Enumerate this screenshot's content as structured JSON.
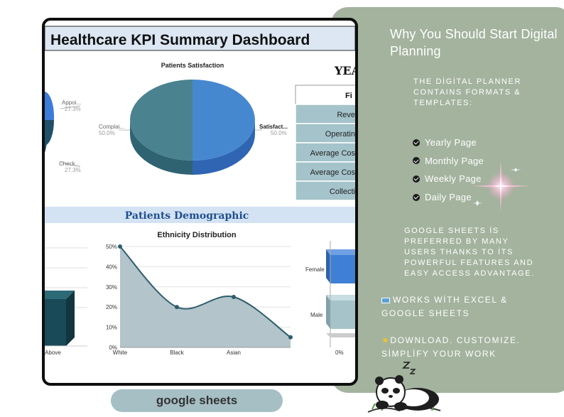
{
  "dashboard": {
    "title": "Healthcare KPI Summary Dashboard",
    "satisfaction_title": "Patients Satisfaction",
    "left_pie_labels": [
      {
        "name": "Appoi...",
        "pct": "27.3%"
      },
      {
        "name": "Check...",
        "pct": "27.3%"
      }
    ],
    "center_pie_labels": [
      {
        "name": "Complai...",
        "pct": "50.0%"
      },
      {
        "name": "Satisfact...",
        "pct": "50.0%"
      }
    ],
    "year_label": "YEA",
    "kpi_header": "Fi",
    "kpi_rows": [
      "Reve",
      "Operatin",
      "Average Cos",
      "Average Cos",
      "Collecti"
    ],
    "demographic_heading": "Patients Demographic",
    "left_axis_label": "Above",
    "colors": {
      "pie_teal": "#4a8290",
      "pie_blue": "#4688d0",
      "heading_blue": "#1f4f8f",
      "band": "#d4e3f4",
      "kpi_cell": "#a4c3ca"
    }
  },
  "chart_data": [
    {
      "type": "area",
      "title": "Ethnicity Distribution",
      "categories": [
        "White",
        "Black",
        "Asian",
        ""
      ],
      "values": [
        50,
        20,
        25,
        5
      ],
      "yticks": [
        "50%",
        "40%",
        "30%",
        "20%",
        "10%",
        "0%"
      ],
      "ylim": [
        0,
        50
      ]
    },
    {
      "type": "bar",
      "categories": [
        "Female",
        "Male"
      ],
      "xtick": "0%"
    }
  ],
  "panel": {
    "title": "Why You Should Start Digital Planning",
    "intro": "THE DİGİTAL PLANNER CONTAINS FORMATS & TEMPLATES:",
    "items": [
      "Yearly Page",
      "Monthly Page",
      "Weekly Page",
      "Daily Page"
    ],
    "google_note": "GOOGLE SHEETS İS PREFERRED BY MANY USERS THANKS TO İTS POWERFUL FEATURES AND EASY ACCESS ADVANTAGE.",
    "works_with": "WORKS WİTH EXCEL & GOOGLE SHEETS",
    "download": "DOWNLOAD. CUSTOMIZE. SİMPLİFY YOUR WORK"
  },
  "badge": "google sheets"
}
